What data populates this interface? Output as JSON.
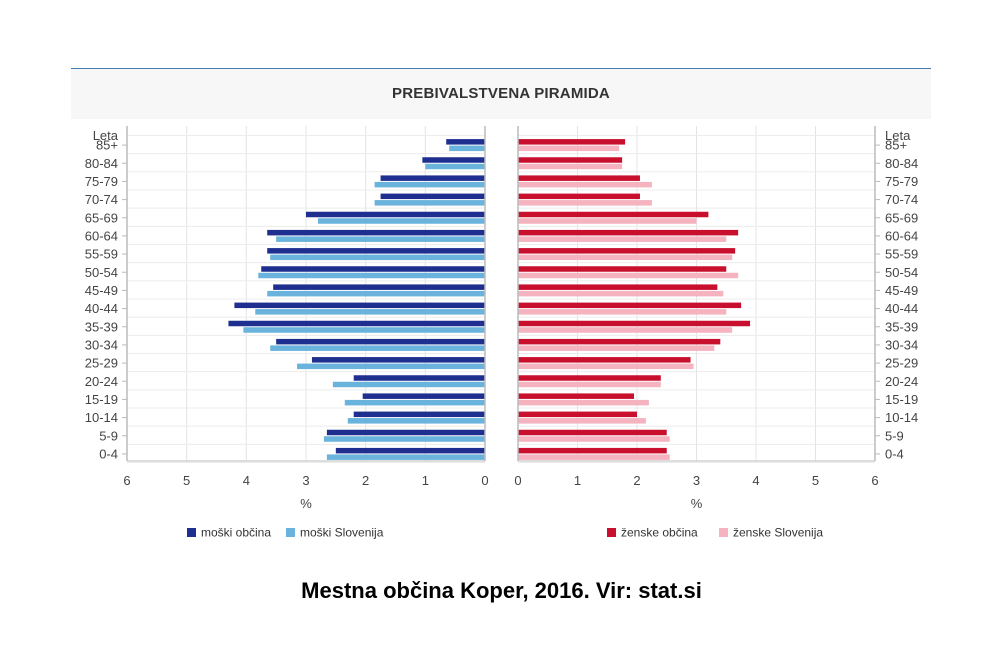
{
  "chart_data": {
    "type": "bar",
    "title": "PREBIVALSTVENA PIRAMIDA",
    "age_axis_title": "Leta",
    "categories": [
      "85+",
      "80-84",
      "75-79",
      "70-74",
      "65-69",
      "60-64",
      "55-59",
      "50-54",
      "45-49",
      "40-44",
      "35-39",
      "30-34",
      "25-29",
      "20-24",
      "15-19",
      "10-14",
      "5-9",
      "0-4"
    ],
    "xlabel_left": "%",
    "xlabel_right": "%",
    "xlim": [
      0,
      6
    ],
    "x_ticks": [
      "0",
      "1",
      "2",
      "3",
      "4",
      "5",
      "6"
    ],
    "grid": true,
    "legend_position": "bottom",
    "series": [
      {
        "name": "moški občina",
        "side": "left",
        "color": "#1f2f8f",
        "values": [
          0.65,
          1.05,
          1.75,
          1.75,
          3.0,
          3.65,
          3.65,
          3.75,
          3.55,
          4.2,
          4.3,
          3.5,
          2.9,
          2.2,
          2.05,
          2.2,
          2.65,
          2.5
        ]
      },
      {
        "name": "moški Slovenija",
        "side": "left",
        "color": "#6ab3dc",
        "values": [
          0.6,
          1.0,
          1.85,
          1.85,
          2.8,
          3.5,
          3.6,
          3.8,
          3.65,
          3.85,
          4.05,
          3.6,
          3.15,
          2.55,
          2.35,
          2.3,
          2.7,
          2.65
        ]
      },
      {
        "name": "ženske občina",
        "side": "right",
        "color": "#c8102e",
        "values": [
          1.8,
          1.75,
          2.05,
          2.05,
          3.2,
          3.7,
          3.65,
          3.5,
          3.35,
          3.75,
          3.9,
          3.4,
          2.9,
          2.4,
          1.95,
          2.0,
          2.5,
          2.5
        ]
      },
      {
        "name": "ženske Slovenija",
        "side": "right",
        "color": "#f4b3bf",
        "values": [
          1.7,
          1.75,
          2.25,
          2.25,
          3.0,
          3.5,
          3.6,
          3.7,
          3.45,
          3.5,
          3.6,
          3.3,
          2.95,
          2.4,
          2.2,
          2.15,
          2.55,
          2.55
        ]
      }
    ]
  },
  "caption": "Mestna občina Koper, 2016. Vir: stat.si"
}
